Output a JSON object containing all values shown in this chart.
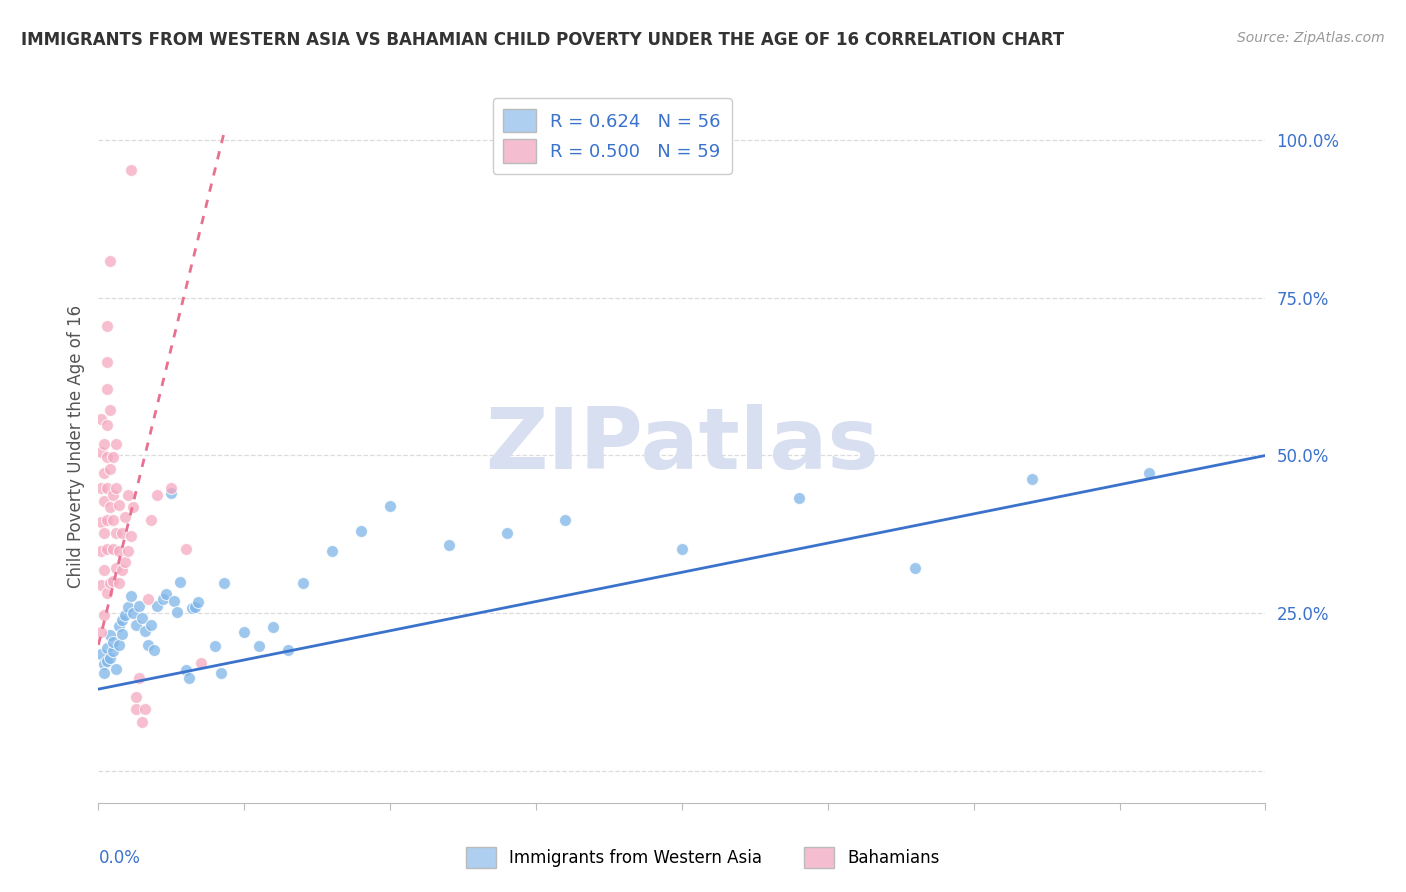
{
  "title": "IMMIGRANTS FROM WESTERN ASIA VS BAHAMIAN CHILD POVERTY UNDER THE AGE OF 16 CORRELATION CHART",
  "source": "Source: ZipAtlas.com",
  "ylabel": "Child Poverty Under the Age of 16",
  "ytick_labels": [
    "",
    "25.0%",
    "50.0%",
    "75.0%",
    "100.0%"
  ],
  "ytick_values": [
    0.0,
    0.25,
    0.5,
    0.75,
    1.0
  ],
  "xlim": [
    0.0,
    0.4
  ],
  "ylim": [
    -0.05,
    1.08
  ],
  "legend_blue_label": "R = 0.624   N = 56",
  "legend_pink_label": "R = 0.500   N = 59",
  "legend_label_blue": "Immigrants from Western Asia",
  "legend_label_pink": "Bahamians",
  "scatter_blue": [
    [
      0.001,
      0.185
    ],
    [
      0.002,
      0.17
    ],
    [
      0.002,
      0.155
    ],
    [
      0.003,
      0.195
    ],
    [
      0.003,
      0.175
    ],
    [
      0.004,
      0.215
    ],
    [
      0.004,
      0.18
    ],
    [
      0.005,
      0.19
    ],
    [
      0.005,
      0.205
    ],
    [
      0.006,
      0.162
    ],
    [
      0.007,
      0.23
    ],
    [
      0.007,
      0.2
    ],
    [
      0.008,
      0.24
    ],
    [
      0.008,
      0.218
    ],
    [
      0.009,
      0.248
    ],
    [
      0.01,
      0.26
    ],
    [
      0.011,
      0.278
    ],
    [
      0.012,
      0.25
    ],
    [
      0.013,
      0.232
    ],
    [
      0.014,
      0.262
    ],
    [
      0.015,
      0.242
    ],
    [
      0.016,
      0.222
    ],
    [
      0.017,
      0.2
    ],
    [
      0.018,
      0.232
    ],
    [
      0.019,
      0.192
    ],
    [
      0.02,
      0.262
    ],
    [
      0.022,
      0.272
    ],
    [
      0.023,
      0.28
    ],
    [
      0.025,
      0.44
    ],
    [
      0.026,
      0.27
    ],
    [
      0.027,
      0.252
    ],
    [
      0.028,
      0.3
    ],
    [
      0.03,
      0.16
    ],
    [
      0.031,
      0.148
    ],
    [
      0.032,
      0.258
    ],
    [
      0.033,
      0.26
    ],
    [
      0.034,
      0.268
    ],
    [
      0.04,
      0.198
    ],
    [
      0.042,
      0.155
    ],
    [
      0.043,
      0.298
    ],
    [
      0.05,
      0.22
    ],
    [
      0.055,
      0.198
    ],
    [
      0.06,
      0.228
    ],
    [
      0.065,
      0.192
    ],
    [
      0.07,
      0.298
    ],
    [
      0.08,
      0.348
    ],
    [
      0.09,
      0.38
    ],
    [
      0.1,
      0.42
    ],
    [
      0.12,
      0.358
    ],
    [
      0.14,
      0.378
    ],
    [
      0.16,
      0.398
    ],
    [
      0.2,
      0.352
    ],
    [
      0.24,
      0.432
    ],
    [
      0.28,
      0.322
    ],
    [
      0.32,
      0.462
    ],
    [
      0.36,
      0.472
    ]
  ],
  "scatter_pink": [
    [
      0.001,
      0.22
    ],
    [
      0.001,
      0.295
    ],
    [
      0.001,
      0.348
    ],
    [
      0.001,
      0.395
    ],
    [
      0.001,
      0.448
    ],
    [
      0.001,
      0.505
    ],
    [
      0.001,
      0.558
    ],
    [
      0.002,
      0.248
    ],
    [
      0.002,
      0.318
    ],
    [
      0.002,
      0.378
    ],
    [
      0.002,
      0.428
    ],
    [
      0.002,
      0.472
    ],
    [
      0.002,
      0.518
    ],
    [
      0.003,
      0.282
    ],
    [
      0.003,
      0.352
    ],
    [
      0.003,
      0.398
    ],
    [
      0.003,
      0.448
    ],
    [
      0.003,
      0.498
    ],
    [
      0.003,
      0.548
    ],
    [
      0.003,
      0.605
    ],
    [
      0.003,
      0.648
    ],
    [
      0.003,
      0.705
    ],
    [
      0.004,
      0.298
    ],
    [
      0.004,
      0.418
    ],
    [
      0.004,
      0.478
    ],
    [
      0.004,
      0.572
    ],
    [
      0.004,
      0.808
    ],
    [
      0.005,
      0.302
    ],
    [
      0.005,
      0.352
    ],
    [
      0.005,
      0.398
    ],
    [
      0.005,
      0.438
    ],
    [
      0.005,
      0.498
    ],
    [
      0.006,
      0.322
    ],
    [
      0.006,
      0.378
    ],
    [
      0.006,
      0.448
    ],
    [
      0.006,
      0.518
    ],
    [
      0.007,
      0.298
    ],
    [
      0.007,
      0.348
    ],
    [
      0.007,
      0.422
    ],
    [
      0.008,
      0.318
    ],
    [
      0.008,
      0.378
    ],
    [
      0.009,
      0.332
    ],
    [
      0.009,
      0.402
    ],
    [
      0.01,
      0.348
    ],
    [
      0.01,
      0.438
    ],
    [
      0.011,
      0.372
    ],
    [
      0.011,
      0.952
    ],
    [
      0.012,
      0.418
    ],
    [
      0.013,
      0.098
    ],
    [
      0.013,
      0.118
    ],
    [
      0.014,
      0.148
    ],
    [
      0.015,
      0.078
    ],
    [
      0.016,
      0.098
    ],
    [
      0.017,
      0.272
    ],
    [
      0.018,
      0.398
    ],
    [
      0.02,
      0.438
    ],
    [
      0.025,
      0.448
    ],
    [
      0.03,
      0.352
    ],
    [
      0.035,
      0.172
    ]
  ],
  "blue_line_x": [
    0.0,
    0.4
  ],
  "blue_line_y": [
    0.13,
    0.5
  ],
  "pink_line_x": [
    0.0,
    0.043
  ],
  "pink_line_y": [
    0.2,
    1.01
  ],
  "blue_scatter_color": "#7EB5E8",
  "pink_scatter_color": "#F5A8C0",
  "blue_line_color": "#3A72CC",
  "pink_line_color": "#E87090",
  "blue_legend_color": "#AECFF0",
  "pink_legend_color": "#F5BDD0",
  "background_color": "#FFFFFF",
  "grid_color": "#DCDCDC",
  "title_color": "#333333",
  "source_color": "#999999",
  "axis_tick_color": "#3A72CC",
  "ylabel_color": "#555555",
  "watermark_text": "ZIPatlas",
  "watermark_color": "#D8DFF0",
  "xtick_count": 9
}
